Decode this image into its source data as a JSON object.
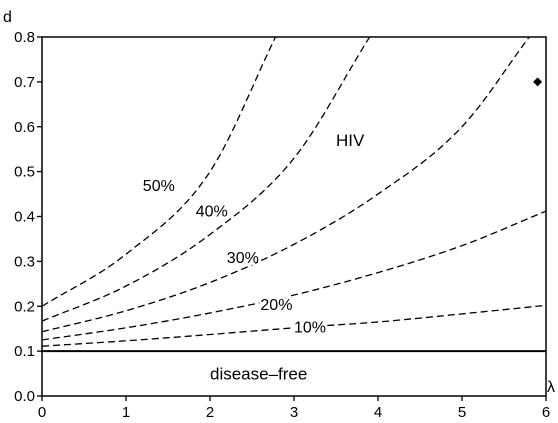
{
  "chart_data": {
    "type": "line",
    "title": "",
    "xlabel": "λ",
    "ylabel": "d",
    "xlim": [
      0,
      6
    ],
    "ylim": [
      0.0,
      0.8
    ],
    "xticks": [
      "0",
      "1",
      "2",
      "3",
      "4",
      "5",
      "6"
    ],
    "yticks": [
      "0.0",
      "0.1",
      "0.2",
      "0.3",
      "0.4",
      "0.5",
      "0.6",
      "0.7",
      "0.8"
    ],
    "grid": false,
    "legend": "none",
    "threshold_line": {
      "y": 0.1,
      "style": "solid"
    },
    "series": [
      {
        "name": "10%",
        "style": "dashed",
        "x": [
          0,
          1,
          2,
          3,
          4,
          5,
          6
        ],
        "y": [
          0.111,
          0.123,
          0.137,
          0.152,
          0.165,
          0.183,
          0.202
        ]
      },
      {
        "name": "20%",
        "style": "dashed",
        "x": [
          0,
          1,
          2,
          3,
          4,
          5,
          6
        ],
        "y": [
          0.125,
          0.152,
          0.185,
          0.225,
          0.275,
          0.335,
          0.412
        ]
      },
      {
        "name": "30%",
        "style": "dashed",
        "x": [
          0,
          1,
          2,
          3,
          4,
          5,
          5.8
        ],
        "y": [
          0.143,
          0.19,
          0.253,
          0.338,
          0.45,
          0.6,
          0.8
        ]
      },
      {
        "name": "40%",
        "style": "dashed",
        "x": [
          0,
          1,
          2,
          3,
          3.9
        ],
        "y": [
          0.167,
          0.245,
          0.36,
          0.53,
          0.8
        ]
      },
      {
        "name": "50%",
        "style": "dashed",
        "x": [
          0,
          1,
          2,
          2.78
        ],
        "y": [
          0.2,
          0.316,
          0.5,
          0.8
        ]
      }
    ],
    "annotations": [
      {
        "text": "50%",
        "x": 1.2,
        "y": 0.47
      },
      {
        "text": "40%",
        "x": 1.83,
        "y": 0.413
      },
      {
        "text": "30%",
        "x": 2.2,
        "y": 0.31
      },
      {
        "text": "20%",
        "x": 2.6,
        "y": 0.205
      },
      {
        "text": "10%",
        "x": 3.0,
        "y": 0.155
      },
      {
        "text": "HIV",
        "x": 3.5,
        "y": 0.57
      },
      {
        "text": "disease–free",
        "x": 2.0,
        "y": 0.05
      }
    ],
    "marker": {
      "shape": "diamond",
      "x": 5.9,
      "y": 0.7
    }
  }
}
